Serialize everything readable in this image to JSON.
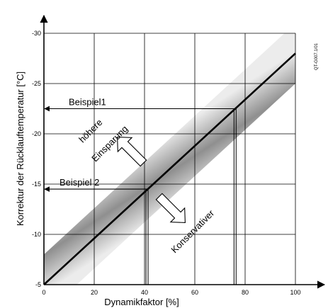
{
  "chart_data": {
    "type": "line",
    "xlabel": "Dynamikfaktor [%]",
    "ylabel": "Korrektur der Rücklauftemperatur [°C]",
    "xlim": [
      0,
      100
    ],
    "ylim": [
      -5,
      -30
    ],
    "x_ticks": [
      "0",
      "20",
      "40",
      "60",
      "80",
      "100"
    ],
    "y_ticks": [
      "-5",
      "-10",
      "-15",
      "-20",
      "-25",
      "-30"
    ],
    "grid": true,
    "series": [
      {
        "x": [
          0,
          100
        ],
        "y": [
          -5,
          -28
        ]
      }
    ],
    "band_halfwidth_c": 3,
    "examples": [
      {
        "label": "Beispiel1",
        "y": -22.5,
        "x": 76
      },
      {
        "label": "Beispiel 2",
        "y": -14.5,
        "x": 41
      }
    ],
    "annotations": {
      "upper_line1": "höhere",
      "upper_line2": "Einsparung",
      "lower": "Konservativer"
    },
    "code": "QT-G007.1/01"
  }
}
